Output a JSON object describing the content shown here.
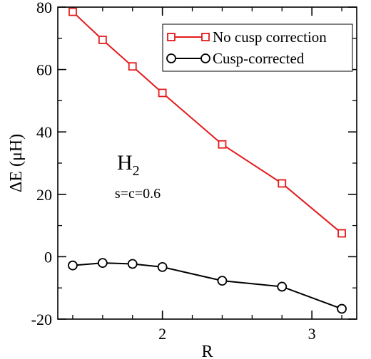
{
  "chart_data": {
    "type": "line",
    "xlabel": "R",
    "ylabel": "ΔE (μH)",
    "xlim": [
      1.3,
      3.3
    ],
    "ylim": [
      -20,
      80
    ],
    "xticks": [
      2,
      3
    ],
    "xtick_labels": [
      "2",
      "3"
    ],
    "yticks": [
      -20,
      0,
      20,
      40,
      60,
      80
    ],
    "ytick_labels": [
      "-20",
      "0",
      "20",
      "40",
      "60",
      "80"
    ],
    "minor_xticks": [
      1.4,
      1.6,
      1.8,
      2.2,
      2.4,
      2.6,
      2.8,
      3.2
    ],
    "minor_yticks": [
      -10,
      10,
      30,
      50,
      70
    ],
    "grid": false,
    "legend_position": "top-right",
    "series": [
      {
        "name": "No cusp correction",
        "color": "#e41a1c",
        "marker": "square",
        "x": [
          1.4,
          1.6,
          1.8,
          2.0,
          2.4,
          2.8,
          3.2
        ],
        "y": [
          78.5,
          69.5,
          61.0,
          52.5,
          36.0,
          23.5,
          7.5
        ]
      },
      {
        "name": "Cusp-corrected",
        "color": "#000000",
        "marker": "circle",
        "x": [
          1.4,
          1.6,
          1.8,
          2.0,
          2.4,
          2.8,
          3.2
        ],
        "y": [
          -2.8,
          -2.0,
          -2.3,
          -3.3,
          -7.7,
          -9.6,
          -16.7
        ]
      }
    ],
    "annotations": {
      "molecule": "H",
      "molecule_subscript": "2",
      "params": "s=c=0.6"
    }
  }
}
